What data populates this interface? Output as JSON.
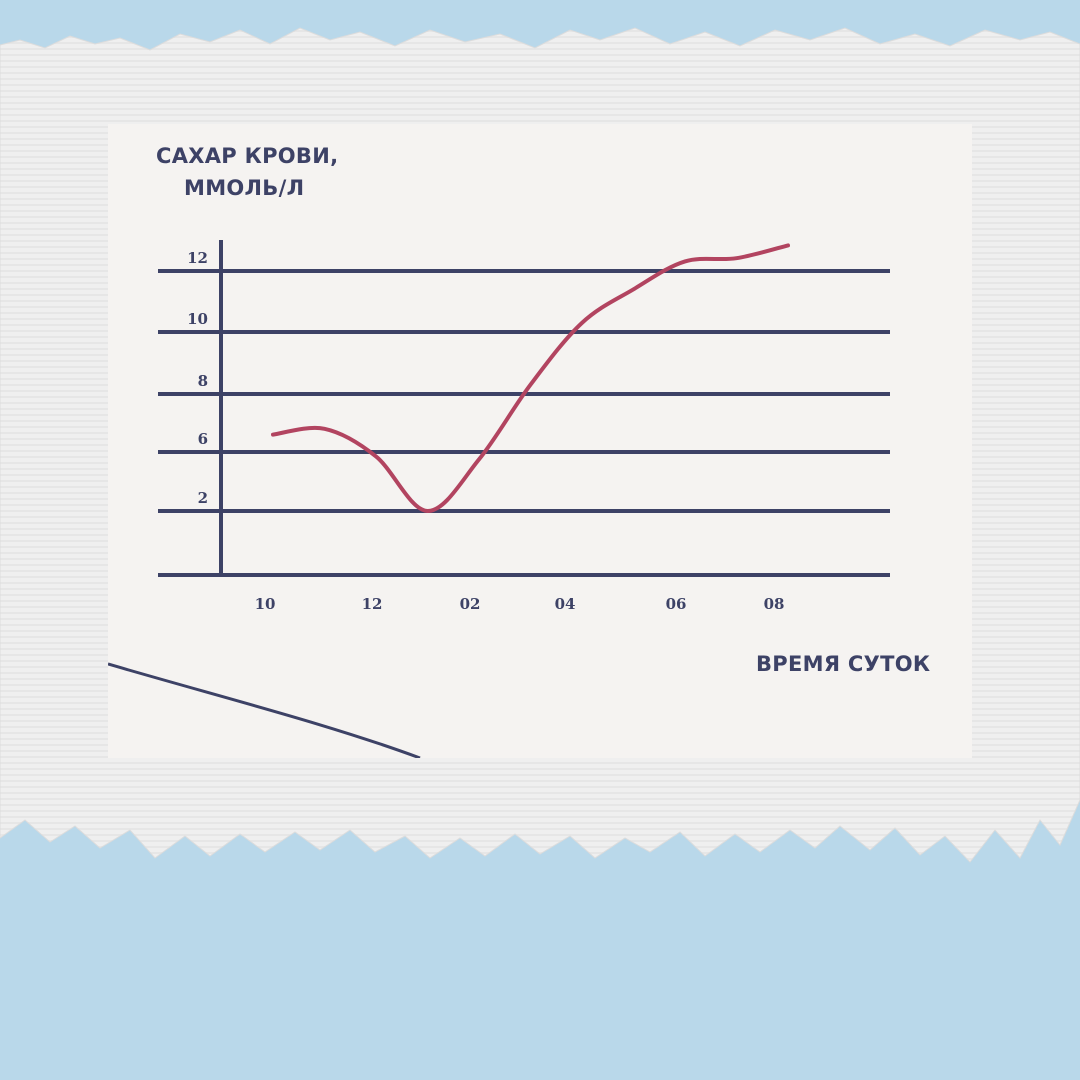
{
  "colors": {
    "background": "#b9d8ea",
    "paper": "#f0f0f0",
    "card": "#f5f3f1",
    "axis": "#3d4266",
    "curve": "#b24460"
  },
  "chart_data": {
    "type": "line",
    "ylabel_lines": [
      "САХАР КРОВИ,",
      "ММОЛЬ/Л"
    ],
    "xlabel": "ВРЕМЯ СУТОК",
    "y_ticks": [
      "12",
      "10",
      "8",
      "6",
      "2"
    ],
    "x_ticks": [
      "10",
      "12",
      "02",
      "04",
      "06",
      "08"
    ],
    "grid": true,
    "series": [
      {
        "points": [
          [
            "10",
            6.6
          ],
          [
            "11",
            6.8
          ],
          [
            "12",
            5.7
          ],
          [
            "01",
            2.0
          ],
          [
            "02",
            5.5
          ],
          [
            "03",
            8.3
          ],
          [
            "04",
            10.3
          ],
          [
            "05",
            11.4
          ],
          [
            "06",
            12.3
          ],
          [
            "07",
            12.4
          ],
          [
            "08",
            12.8
          ]
        ]
      }
    ]
  }
}
